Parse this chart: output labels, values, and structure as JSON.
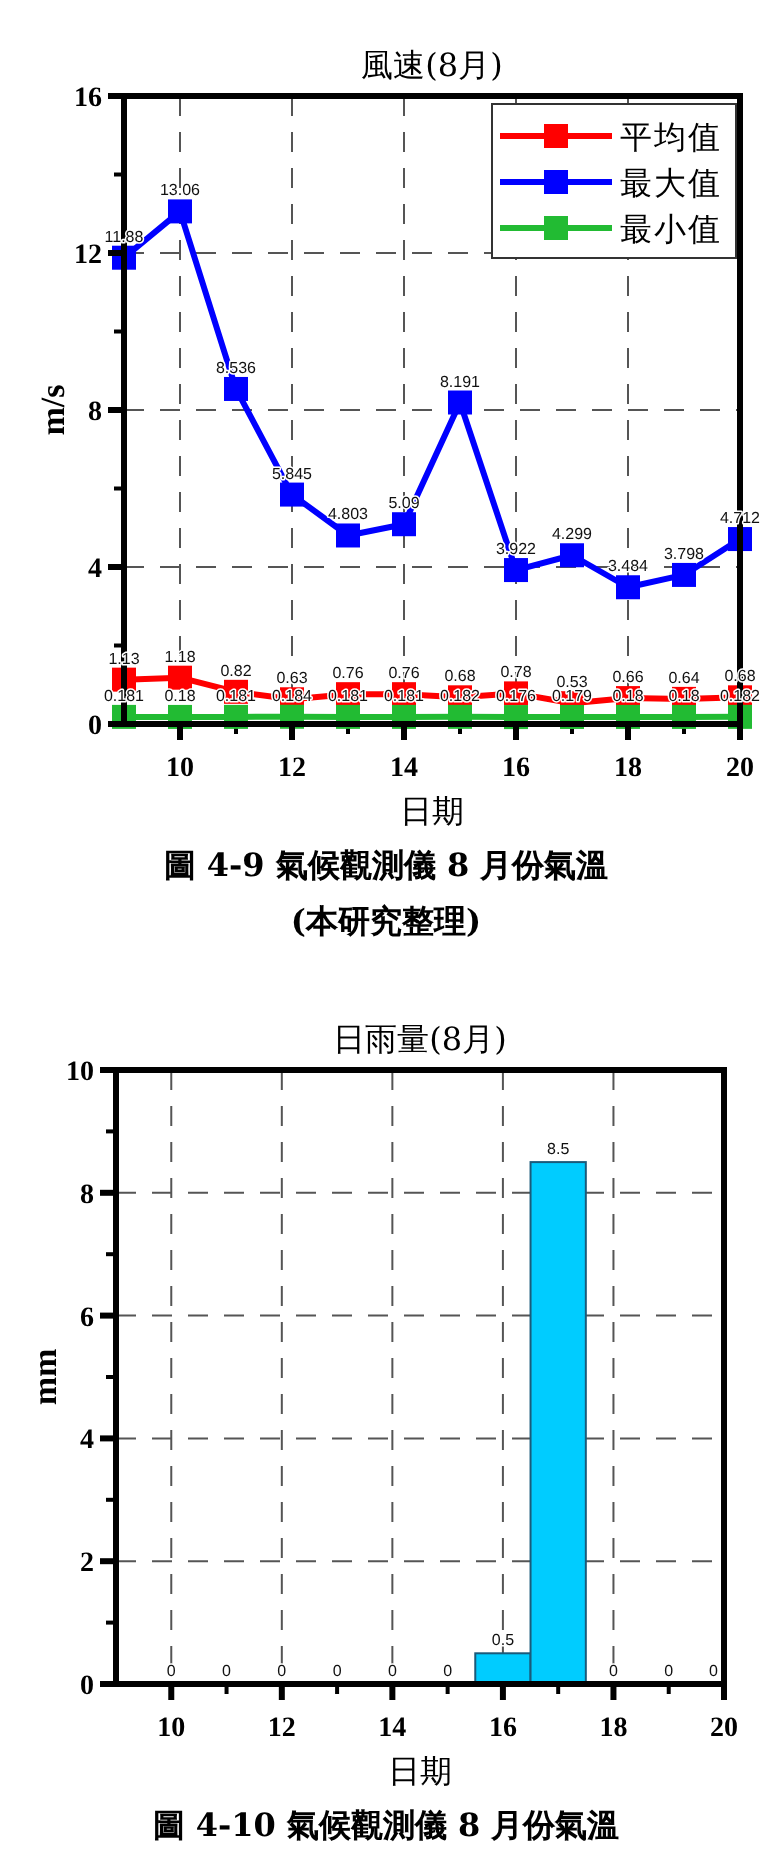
{
  "chart_data": [
    {
      "type": "line",
      "title": "風速(8月)",
      "xlabel": "日期",
      "ylabel": "m/s",
      "x": [
        9,
        10,
        11,
        12,
        13,
        14,
        15,
        16,
        17,
        18,
        19,
        20
      ],
      "series": [
        {
          "name": "平均值",
          "color": "#ff0000",
          "values": [
            1.13,
            1.18,
            0.82,
            0.63,
            0.76,
            0.76,
            0.68,
            0.78,
            0.53,
            0.66,
            0.64,
            0.68
          ]
        },
        {
          "name": "最大值",
          "color": "#0000ff",
          "values": [
            11.88,
            13.06,
            8.536,
            5.845,
            4.803,
            5.09,
            8.191,
            3.922,
            4.299,
            3.484,
            3.798,
            4.712
          ]
        },
        {
          "name": "最小值",
          "color": "#22bb33",
          "values": [
            0.181,
            0.18,
            0.181,
            0.184,
            0.181,
            0.181,
            0.182,
            0.176,
            0.179,
            0.18,
            0.18,
            0.182
          ]
        }
      ],
      "xlim": [
        9,
        20
      ],
      "xticks": [
        10,
        12,
        14,
        16,
        18,
        20
      ],
      "ylim": [
        0,
        16
      ],
      "yticks": [
        0,
        4,
        8,
        12,
        16
      ],
      "grid": true,
      "legend": "top right",
      "marker": "square",
      "data_labels": true,
      "annotations": [
        "圖 4-9 氣候觀測儀 8 月份氣溫",
        "(本研究整理)"
      ]
    },
    {
      "type": "bar",
      "title": "日雨量(8月)",
      "xlabel": "日期",
      "ylabel": "mm",
      "x": [
        10,
        11,
        12,
        13,
        14,
        15,
        16,
        17,
        18,
        19,
        20
      ],
      "values": [
        0,
        0,
        0,
        0,
        0,
        0,
        0.5,
        8.5,
        0,
        0,
        0
      ],
      "color": "#00ccff",
      "xlim": [
        9,
        20
      ],
      "xticks": [
        10,
        12,
        14,
        16,
        18,
        20
      ],
      "ylim": [
        0,
        10
      ],
      "yticks": [
        0,
        2,
        4,
        6,
        8,
        10
      ],
      "grid": true,
      "data_labels": true,
      "annotations": [
        "圖 4-10 氣候觀測儀 8 月份氣溫"
      ]
    }
  ]
}
